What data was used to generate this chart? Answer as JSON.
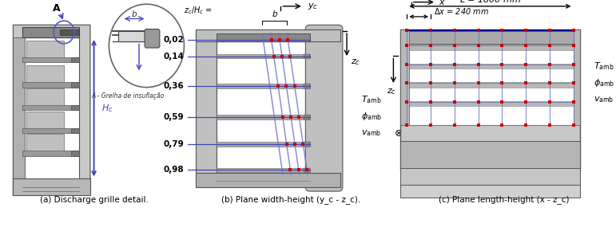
{
  "fig_width": 7.71,
  "fig_height": 2.9,
  "dpi": 100,
  "bg_color": "#ffffff",
  "subcaptions": [
    "(a) Discharge grille detail.",
    "(b) Plane width-height (y_c - z_c).",
    "(c) Plane length-height (x - z_c)"
  ],
  "panel_b": {
    "ratios": [
      "0,02",
      "0,14",
      "0,36",
      "0,59",
      "0,79",
      "0,98"
    ],
    "line_color": "#4444bb",
    "dot_color": "#cc0000",
    "curtain_color": "#7777cc"
  },
  "panel_c": {
    "n_cols": 8,
    "n_rows": 6,
    "line_color": "#7777bb",
    "dot_color": "#cc0000",
    "top_line_color": "#000099"
  }
}
